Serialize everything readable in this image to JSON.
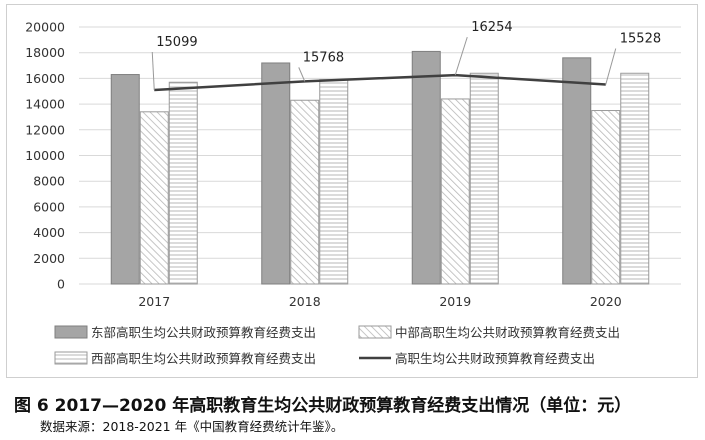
{
  "caption": "图 6  2017—2020 年高职教育生均公共财政预算教育经费支出情况（单位：元）",
  "source": "数据来源：2018-2021 年《中国教育经费统计年鉴》。",
  "colors": {
    "east_bar": "#a5a5a5",
    "east_border": "#7f7f7f",
    "pattern_stroke": "#b7b7b7",
    "bar_border": "#9a9a9a",
    "line": "#404040",
    "grid": "#d9d9d9"
  },
  "chart_data": {
    "type": "bar",
    "categories": [
      "2017",
      "2018",
      "2019",
      "2020"
    ],
    "ylim": [
      0,
      20000
    ],
    "y_ticks": [
      "0",
      "2000",
      "4000",
      "6000",
      "8000",
      "10000",
      "12000",
      "14000",
      "16000",
      "18000",
      "20000"
    ],
    "grid": true,
    "legend_position": "bottom",
    "series": [
      {
        "name": "东部高职生均公共财政预算教育经费支出",
        "kind": "bar",
        "fill": "solid",
        "values": [
          16300,
          17200,
          18100,
          17600
        ]
      },
      {
        "name": "中部高职生均公共财政预算教育经费支出",
        "kind": "bar",
        "fill": "diagonal",
        "values": [
          13400,
          14300,
          14400,
          13500
        ]
      },
      {
        "name": "西部高职生均公共财政预算教育经费支出",
        "kind": "bar",
        "fill": "horizontal",
        "values": [
          15700,
          15900,
          16400,
          16400
        ]
      },
      {
        "name": "高职生均公共财政预算教育经费支出",
        "kind": "line",
        "values": [
          15099,
          15768,
          16254,
          15528
        ],
        "labels": [
          "15099",
          "15768",
          "16254",
          "15528"
        ]
      }
    ]
  }
}
